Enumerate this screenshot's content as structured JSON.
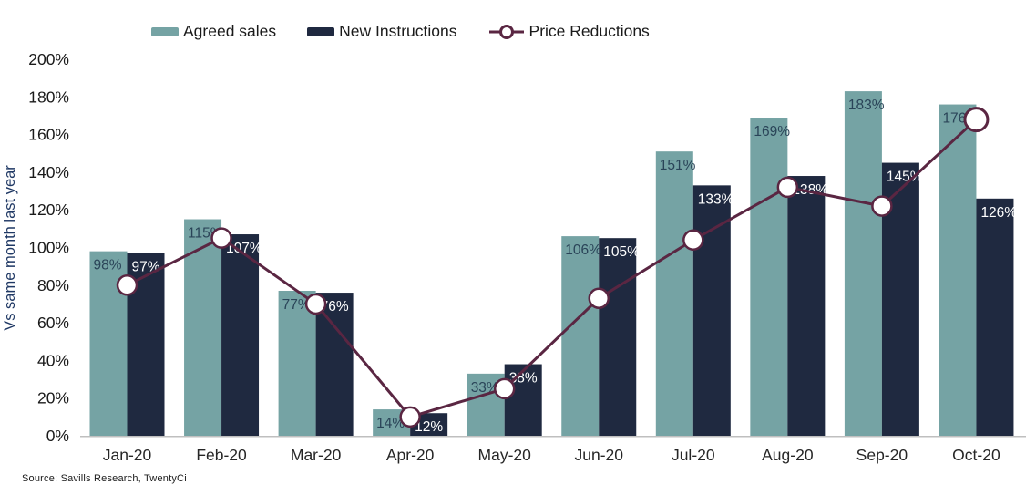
{
  "legend": {
    "items": [
      {
        "label": "Agreed sales",
        "color": "#75a3a4",
        "marker": "bar-swatch"
      },
      {
        "label": "New Instructions",
        "color": "#1f2940",
        "marker": "bar-swatch"
      },
      {
        "label": "Price Reductions",
        "color": "#5a2642",
        "marker": "line-open-circle"
      }
    ]
  },
  "y_axis": {
    "title": "Vs same month last year",
    "tick_labels": [
      "0%",
      "20%",
      "40%",
      "60%",
      "80%",
      "100%",
      "120%",
      "140%",
      "160%",
      "180%",
      "200%"
    ],
    "min": 0,
    "max": 200,
    "step": 20
  },
  "x_axis": {
    "labels": [
      "Jan-20",
      "Feb-20",
      "Mar-20",
      "Apr-20",
      "May-20",
      "Jun-20",
      "Jul-20",
      "Aug-20",
      "Sep-20",
      "Oct-20"
    ]
  },
  "source": "Source: Savills Research, TwentyCi",
  "colors": {
    "agreed_sales_bar": "#75a3a4",
    "new_instructions_bar": "#1f2940",
    "price_reductions_line": "#5a2642",
    "marker_fill": "#ffffff",
    "teal_bar_label": "#2a4458",
    "navy_bar_label": "#ffffff",
    "axis_line": "#bfbfbf",
    "tick_text": "#1a1a1a",
    "y_axis_title_text": "#1f3864"
  },
  "chart_data": {
    "type": "bar",
    "categories": [
      "Jan-20",
      "Feb-20",
      "Mar-20",
      "Apr-20",
      "May-20",
      "Jun-20",
      "Jul-20",
      "Aug-20",
      "Sep-20",
      "Oct-20"
    ],
    "series": [
      {
        "name": "Agreed sales",
        "type": "bar",
        "color": "#75a3a4",
        "values": [
          98,
          115,
          77,
          14,
          33,
          106,
          151,
          169,
          183,
          176
        ],
        "data_labels": [
          "98%",
          "115%",
          "77%",
          "14%",
          "33%",
          "106%",
          "151%",
          "169%",
          "183%",
          "176%"
        ],
        "label_color": "#2a4458"
      },
      {
        "name": "New Instructions",
        "type": "bar",
        "color": "#1f2940",
        "values": [
          97,
          107,
          76,
          12,
          38,
          105,
          133,
          138,
          145,
          126
        ],
        "data_labels": [
          "97%",
          "107%",
          "76%",
          "12%",
          "38%",
          "105%",
          "133%",
          "138%",
          "145%",
          "126%"
        ],
        "label_color": "#ffffff"
      },
      {
        "name": "Price Reductions",
        "type": "line",
        "color": "#5a2642",
        "marker": "open-circle",
        "marker_fill": "#ffffff",
        "values": [
          80,
          105,
          70,
          10,
          25,
          73,
          104,
          132,
          122,
          168
        ],
        "values_are_estimated_from_plot": true
      }
    ],
    "title": "",
    "xlabel": "",
    "ylabel": "Vs same month last year",
    "ylim": [
      0,
      200
    ],
    "y_tick_step": 20,
    "grid": false,
    "legend_position": "top"
  }
}
